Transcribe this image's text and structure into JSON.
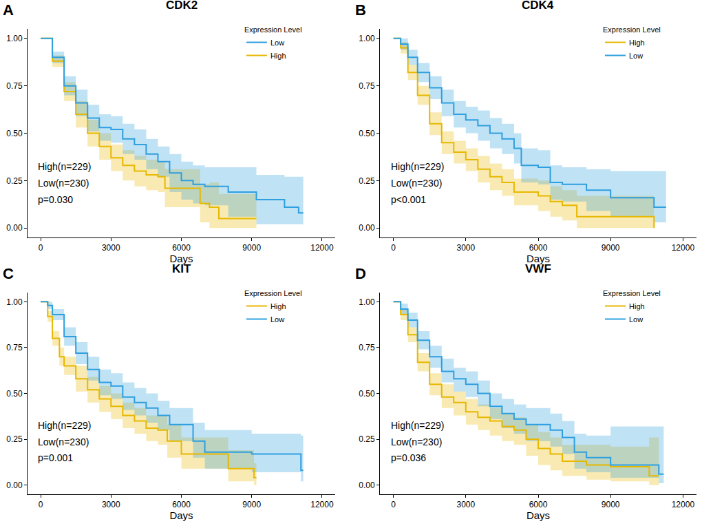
{
  "chart_data": [
    {
      "type": "line",
      "panel": "A",
      "title": "CDK2",
      "x_label": "Days",
      "legend_title": "Expression Level",
      "legend": "top right",
      "grid": false,
      "annotations": [
        "High(n=229)",
        "Low(n=230)",
        "p=0.030"
      ],
      "xlim": [
        -560,
        12560
      ],
      "xticks": [
        0,
        3000,
        6000,
        9000,
        12000
      ],
      "ylim": [
        -0.05,
        1.05
      ],
      "yticks": [
        {
          "value": 0,
          "label": "0.00"
        },
        {
          "value": 0.25,
          "label": "0.25"
        },
        {
          "value": 0.5,
          "label": "0.50"
        },
        {
          "value": 0.75,
          "label": "0.75"
        },
        {
          "value": 1,
          "label": "1.00"
        }
      ],
      "series": [
        {
          "name": "High",
          "color": "#E7B800",
          "line_style": "step",
          "x": [
            0,
            500,
            1000,
            1500,
            2000,
            2500,
            3000,
            3500,
            4000,
            4500,
            5000,
            5300,
            6000,
            6500,
            6800,
            7200,
            7600,
            9200
          ],
          "values": [
            1,
            0.88,
            0.72,
            0.6,
            0.5,
            0.43,
            0.37,
            0.33,
            0.3,
            0.28,
            0.27,
            0.21,
            0.21,
            0.21,
            0.13,
            0.11,
            0.05,
            0.05
          ],
          "lower": [
            1,
            0.85,
            0.67,
            0.53,
            0.43,
            0.36,
            0.3,
            0.25,
            0.22,
            0.2,
            0.19,
            0.11,
            0.11,
            0.11,
            0.03,
            0,
            0,
            0
          ],
          "upper": [
            1,
            0.91,
            0.77,
            0.67,
            0.57,
            0.5,
            0.44,
            0.41,
            0.38,
            0.36,
            0.35,
            0.31,
            0.31,
            0.31,
            0.23,
            0.24,
            0.18,
            0.18
          ]
        },
        {
          "name": "Low",
          "color": "#2E9FDF",
          "line_style": "step",
          "x": [
            0,
            500,
            1000,
            1500,
            2000,
            2500,
            3000,
            3500,
            4000,
            4500,
            5000,
            5500,
            6000,
            6500,
            7000,
            8000,
            9200,
            10400,
            11000,
            11200
          ],
          "values": [
            1,
            0.9,
            0.75,
            0.66,
            0.58,
            0.53,
            0.52,
            0.47,
            0.44,
            0.39,
            0.35,
            0.29,
            0.25,
            0.23,
            0.22,
            0.19,
            0.15,
            0.11,
            0.08,
            0.08
          ],
          "lower": [
            1,
            0.87,
            0.7,
            0.59,
            0.51,
            0.46,
            0.45,
            0.39,
            0.36,
            0.31,
            0.27,
            0.19,
            0.15,
            0.13,
            0.12,
            0.06,
            0.02,
            0.02,
            0.02,
            0.02
          ],
          "upper": [
            1,
            0.93,
            0.8,
            0.73,
            0.65,
            0.6,
            0.59,
            0.55,
            0.52,
            0.47,
            0.43,
            0.39,
            0.35,
            0.33,
            0.32,
            0.32,
            0.28,
            0.27,
            0.27,
            0.27
          ]
        }
      ]
    },
    {
      "type": "line",
      "panel": "B",
      "title": "CDK4",
      "x_label": "Days",
      "legend_title": "Expression Level",
      "legend": "top right",
      "grid": false,
      "annotations": [
        "High(n=229)",
        "Low(n=230)",
        "p<0.001"
      ],
      "xlim": [
        -560,
        12560
      ],
      "xticks": [
        0,
        3000,
        6000,
        9000,
        12000
      ],
      "ylim": [
        -0.05,
        1.05
      ],
      "yticks": [
        {
          "value": 0,
          "label": "0.00"
        },
        {
          "value": 0.25,
          "label": "0.25"
        },
        {
          "value": 0.5,
          "label": "0.50"
        },
        {
          "value": 0.75,
          "label": "0.75"
        },
        {
          "value": 1,
          "label": "1.00"
        }
      ],
      "series": [
        {
          "name": "High",
          "color": "#E7B800",
          "line_style": "step",
          "x": [
            0,
            300,
            600,
            1000,
            1500,
            2000,
            2500,
            3000,
            3500,
            4000,
            4500,
            5000,
            6000,
            6500,
            7000,
            7600,
            10700,
            10800
          ],
          "values": [
            1,
            0.95,
            0.82,
            0.7,
            0.55,
            0.45,
            0.4,
            0.36,
            0.31,
            0.27,
            0.24,
            0.19,
            0.17,
            0.14,
            0.12,
            0.06,
            0.06,
            0
          ],
          "lower": [
            1,
            0.92,
            0.78,
            0.65,
            0.49,
            0.39,
            0.34,
            0.3,
            0.24,
            0.2,
            0.17,
            0.12,
            0.09,
            0.06,
            0.04,
            0,
            0,
            0
          ],
          "upper": [
            1,
            0.98,
            0.86,
            0.75,
            0.61,
            0.51,
            0.46,
            0.42,
            0.38,
            0.34,
            0.31,
            0.26,
            0.25,
            0.22,
            0.2,
            0.17,
            0.17,
            0.17
          ]
        },
        {
          "name": "Low",
          "color": "#2E9FDF",
          "line_style": "step",
          "x": [
            0,
            300,
            600,
            1000,
            1500,
            2000,
            2500,
            3000,
            3500,
            4000,
            4500,
            5000,
            5300,
            6000,
            6500,
            7000,
            8000,
            9000,
            10800,
            11300
          ],
          "values": [
            1,
            0.97,
            0.9,
            0.82,
            0.74,
            0.66,
            0.6,
            0.57,
            0.54,
            0.5,
            0.47,
            0.42,
            0.33,
            0.32,
            0.24,
            0.23,
            0.2,
            0.16,
            0.11,
            0.11
          ],
          "lower": [
            1,
            0.94,
            0.86,
            0.77,
            0.68,
            0.59,
            0.53,
            0.5,
            0.46,
            0.42,
            0.39,
            0.34,
            0.24,
            0.23,
            0.15,
            0.14,
            0.09,
            0.06,
            0.03,
            0.03
          ],
          "upper": [
            1,
            1,
            0.94,
            0.87,
            0.8,
            0.73,
            0.67,
            0.64,
            0.62,
            0.58,
            0.55,
            0.5,
            0.42,
            0.41,
            0.33,
            0.32,
            0.31,
            0.3,
            0.3,
            0.3
          ]
        }
      ]
    },
    {
      "type": "line",
      "panel": "C",
      "title": "KIT",
      "x_label": "Days",
      "legend_title": "Expression Level",
      "legend": "top right",
      "grid": false,
      "annotations": [
        "High(n=229)",
        "Low(n=230)",
        "p=0.001"
      ],
      "xlim": [
        -560,
        12560
      ],
      "xticks": [
        0,
        3000,
        6000,
        9000,
        12000
      ],
      "ylim": [
        -0.05,
        1.05
      ],
      "yticks": [
        {
          "value": 0,
          "label": "0.00"
        },
        {
          "value": 0.25,
          "label": "0.25"
        },
        {
          "value": 0.5,
          "label": "0.50"
        },
        {
          "value": 0.75,
          "label": "0.75"
        },
        {
          "value": 1,
          "label": "1.00"
        }
      ],
      "series": [
        {
          "name": "High",
          "color": "#E7B800",
          "line_style": "step",
          "x": [
            0,
            300,
            500,
            800,
            1000,
            1500,
            2000,
            2500,
            3000,
            3500,
            4000,
            4500,
            5000,
            5400,
            6000,
            7500,
            8000,
            9000,
            9100,
            9200
          ],
          "values": [
            1,
            0.92,
            0.8,
            0.7,
            0.65,
            0.58,
            0.52,
            0.47,
            0.43,
            0.38,
            0.35,
            0.31,
            0.3,
            0.24,
            0.17,
            0.17,
            0.09,
            0.09,
            0.04,
            0.04
          ],
          "lower": [
            1,
            0.89,
            0.76,
            0.65,
            0.6,
            0.51,
            0.45,
            0.4,
            0.36,
            0.31,
            0.28,
            0.24,
            0.22,
            0.15,
            0.09,
            0.09,
            0.02,
            0.02,
            0,
            0
          ],
          "upper": [
            1,
            0.95,
            0.84,
            0.75,
            0.7,
            0.65,
            0.59,
            0.54,
            0.5,
            0.45,
            0.42,
            0.38,
            0.38,
            0.33,
            0.26,
            0.26,
            0.19,
            0.19,
            0.12,
            0.12
          ]
        },
        {
          "name": "Low",
          "color": "#2E9FDF",
          "line_style": "step",
          "x": [
            0,
            300,
            500,
            1000,
            1500,
            2000,
            2500,
            3000,
            3500,
            4000,
            4500,
            5000,
            5500,
            6000,
            6500,
            7000,
            9000,
            10400,
            11100,
            11200
          ],
          "values": [
            1,
            0.98,
            0.93,
            0.81,
            0.72,
            0.63,
            0.56,
            0.54,
            0.48,
            0.45,
            0.42,
            0.38,
            0.33,
            0.33,
            0.24,
            0.18,
            0.17,
            0.17,
            0.08,
            0.08
          ],
          "lower": [
            1,
            0.96,
            0.9,
            0.76,
            0.66,
            0.57,
            0.49,
            0.47,
            0.41,
            0.38,
            0.34,
            0.3,
            0.24,
            0.24,
            0.15,
            0.09,
            0.07,
            0.07,
            0.02,
            0.02
          ],
          "upper": [
            1,
            1,
            0.96,
            0.86,
            0.78,
            0.7,
            0.63,
            0.61,
            0.56,
            0.53,
            0.5,
            0.46,
            0.42,
            0.42,
            0.34,
            0.3,
            0.28,
            0.28,
            0.27,
            0.27
          ]
        }
      ]
    },
    {
      "type": "line",
      "panel": "D",
      "title": "VWF",
      "x_label": "Days",
      "legend_title": "Expression Level",
      "legend": "top right",
      "grid": false,
      "annotations": [
        "High(n=229)",
        "Low(n=230)",
        "p=0.036"
      ],
      "xlim": [
        -560,
        12560
      ],
      "xticks": [
        0,
        3000,
        6000,
        9000,
        12000
      ],
      "ylim": [
        -0.05,
        1.05
      ],
      "yticks": [
        {
          "value": 0,
          "label": "0.00"
        },
        {
          "value": 0.25,
          "label": "0.25"
        },
        {
          "value": 0.5,
          "label": "0.50"
        },
        {
          "value": 0.75,
          "label": "0.75"
        },
        {
          "value": 1,
          "label": "1.00"
        }
      ],
      "series": [
        {
          "name": "High",
          "color": "#E7B800",
          "line_style": "step",
          "x": [
            0,
            300,
            600,
            1000,
            1500,
            2000,
            2500,
            3000,
            3500,
            4000,
            4500,
            5000,
            5500,
            6000,
            6500,
            7000,
            8000,
            9000,
            10500,
            10600,
            11000
          ],
          "values": [
            1,
            0.93,
            0.82,
            0.67,
            0.55,
            0.48,
            0.45,
            0.4,
            0.37,
            0.35,
            0.32,
            0.3,
            0.25,
            0.2,
            0.17,
            0.13,
            0.11,
            0.1,
            0.1,
            0.05,
            0.05
          ],
          "lower": [
            1,
            0.9,
            0.78,
            0.62,
            0.49,
            0.42,
            0.38,
            0.33,
            0.3,
            0.27,
            0.24,
            0.22,
            0.16,
            0.11,
            0.08,
            0.05,
            0.03,
            0.02,
            0.02,
            0,
            0
          ],
          "upper": [
            1,
            0.96,
            0.86,
            0.72,
            0.61,
            0.55,
            0.51,
            0.47,
            0.44,
            0.42,
            0.39,
            0.37,
            0.33,
            0.29,
            0.26,
            0.22,
            0.22,
            0.21,
            0.21,
            0.26,
            0.26
          ]
        },
        {
          "name": "Low",
          "color": "#2E9FDF",
          "line_style": "step",
          "x": [
            0,
            300,
            600,
            1000,
            1500,
            2000,
            2500,
            3000,
            3500,
            4000,
            4500,
            5000,
            5500,
            6000,
            6500,
            7000,
            7500,
            8000,
            9000,
            10000,
            11000,
            11200
          ],
          "values": [
            1,
            0.96,
            0.9,
            0.79,
            0.7,
            0.62,
            0.58,
            0.55,
            0.5,
            0.43,
            0.39,
            0.36,
            0.33,
            0.33,
            0.3,
            0.26,
            0.18,
            0.15,
            0.11,
            0.11,
            0.06,
            0.06
          ],
          "lower": [
            1,
            0.93,
            0.86,
            0.74,
            0.64,
            0.56,
            0.51,
            0.48,
            0.43,
            0.36,
            0.31,
            0.28,
            0.24,
            0.24,
            0.21,
            0.17,
            0.09,
            0.07,
            0.04,
            0.04,
            0.01,
            0.01
          ],
          "upper": [
            1,
            0.99,
            0.94,
            0.84,
            0.76,
            0.69,
            0.64,
            0.62,
            0.57,
            0.5,
            0.47,
            0.44,
            0.42,
            0.42,
            0.39,
            0.35,
            0.28,
            0.27,
            0.32,
            0.32,
            0.32,
            0.32
          ]
        }
      ]
    }
  ]
}
